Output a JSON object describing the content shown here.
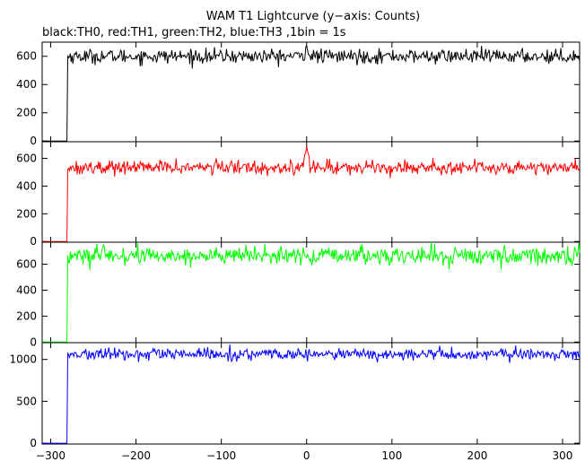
{
  "chart_data": {
    "type": "line",
    "title": "WAM T1 Lightcurve (y−axis: Counts)",
    "subtitle": "black:TH0, red:TH1, green:TH2, blue:TH3 ,1bin = 1s",
    "xlabel": "",
    "x_range": [
      -310,
      320
    ],
    "x_ticks": [
      -300,
      -200,
      -100,
      0,
      100,
      200,
      300
    ],
    "x_tick_labels": [
      "−300",
      "−200",
      "−100",
      "0",
      "100",
      "200",
      "300"
    ],
    "grid": false,
    "trigger_time": -280,
    "bin_seconds": 1,
    "panels": [
      {
        "series_name": "TH0",
        "color": "#000000",
        "ylim": [
          -5,
          700
        ],
        "y_ticks": [
          0,
          200,
          400,
          600
        ],
        "y_tick_labels": [
          "0",
          "200",
          "400",
          "600"
        ],
        "pre_level": 0,
        "mean_level": 600,
        "noise": 25,
        "spike": [
          0,
          680
        ]
      },
      {
        "series_name": "TH1",
        "color": "#ff0000",
        "ylim": [
          -5,
          720
        ],
        "y_ticks": [
          0,
          200,
          400,
          600
        ],
        "y_tick_labels": [
          "0",
          "200",
          "400",
          "600"
        ],
        "pre_level": 0,
        "mean_level": 535,
        "noise": 25,
        "spike": [
          0,
          720
        ]
      },
      {
        "series_name": "TH2",
        "color": "#00ff00",
        "ylim": [
          -5,
          770
        ],
        "y_ticks": [
          0,
          200,
          400,
          600
        ],
        "y_tick_labels": [
          "0",
          "200",
          "400",
          "600"
        ],
        "pre_level": 0,
        "mean_level": 665,
        "noise": 35,
        "spike": null
      },
      {
        "series_name": "TH3",
        "color": "#0000ff",
        "ylim": [
          -10,
          1200
        ],
        "y_ticks": [
          0,
          500,
          1000
        ],
        "y_tick_labels": [
          "0",
          "500",
          "1000"
        ],
        "pre_level": 0,
        "mean_level": 1060,
        "noise": 35,
        "spike": null
      }
    ]
  }
}
